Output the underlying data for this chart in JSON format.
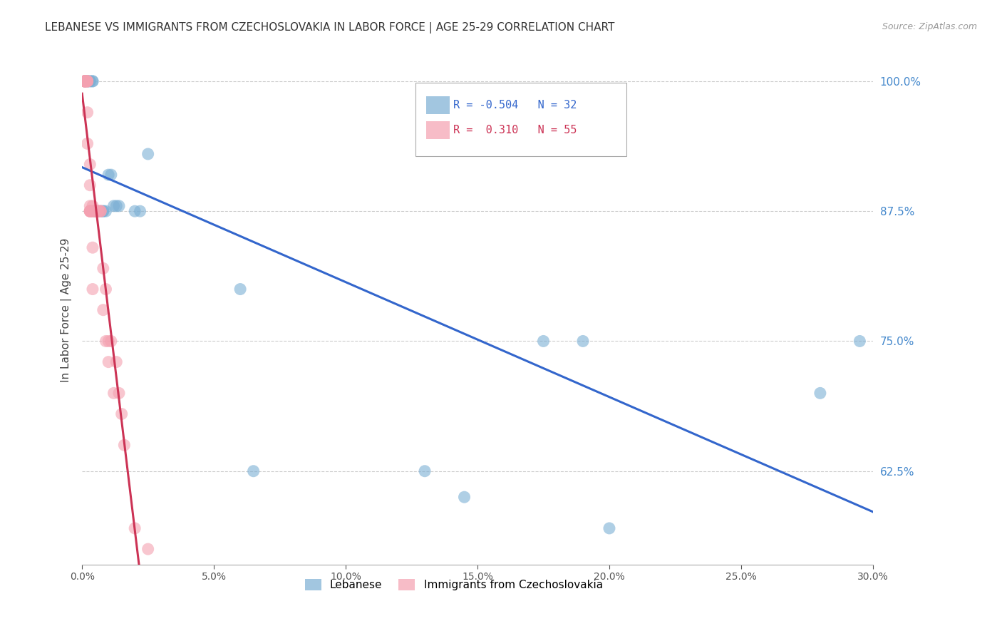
{
  "title": "LEBANESE VS IMMIGRANTS FROM CZECHOSLOVAKIA IN LABOR FORCE | AGE 25-29 CORRELATION CHART",
  "source": "Source: ZipAtlas.com",
  "ylabel": "In Labor Force | Age 25-29",
  "xlim": [
    0.0,
    0.3
  ],
  "ylim": [
    0.535,
    1.025
  ],
  "xticks": [
    0.0,
    0.05,
    0.1,
    0.15,
    0.2,
    0.25,
    0.3
  ],
  "xticklabels": [
    "0.0%",
    "5.0%",
    "10.0%",
    "15.0%",
    "20.0%",
    "25.0%",
    "30.0%"
  ],
  "ytick_positions": [
    0.625,
    0.75,
    0.875,
    1.0
  ],
  "ytick_labels": [
    "62.5%",
    "75.0%",
    "87.5%",
    "100.0%"
  ],
  "grid_color": "#cccccc",
  "background_color": "#ffffff",
  "blue_color": "#7bafd4",
  "pink_color": "#f4a0b0",
  "blue_label": "Lebanese",
  "pink_label": "Immigrants from Czechoslovakia",
  "R_blue": -0.504,
  "N_blue": 32,
  "R_pink": 0.31,
  "N_pink": 55,
  "blue_line_color": "#3366cc",
  "pink_line_color": "#cc3355",
  "blue_x": [
    0.001,
    0.001,
    0.002,
    0.002,
    0.003,
    0.003,
    0.004,
    0.004,
    0.005,
    0.005,
    0.006,
    0.007,
    0.008,
    0.008,
    0.009,
    0.01,
    0.011,
    0.012,
    0.013,
    0.014,
    0.02,
    0.022,
    0.025,
    0.06,
    0.065,
    0.13,
    0.145,
    0.175,
    0.19,
    0.2,
    0.28,
    0.295
  ],
  "blue_y": [
    1.0,
    1.0,
    1.0,
    1.0,
    1.0,
    1.0,
    1.0,
    1.0,
    0.875,
    0.875,
    0.875,
    0.875,
    0.875,
    0.875,
    0.875,
    0.91,
    0.91,
    0.88,
    0.88,
    0.88,
    0.875,
    0.875,
    0.93,
    0.8,
    0.625,
    0.625,
    0.6,
    0.75,
    0.75,
    0.57,
    0.7,
    0.75
  ],
  "pink_x": [
    0.001,
    0.001,
    0.001,
    0.001,
    0.001,
    0.001,
    0.001,
    0.001,
    0.001,
    0.001,
    0.002,
    0.002,
    0.002,
    0.002,
    0.002,
    0.002,
    0.002,
    0.003,
    0.003,
    0.003,
    0.003,
    0.003,
    0.003,
    0.003,
    0.003,
    0.004,
    0.004,
    0.004,
    0.004,
    0.004,
    0.004,
    0.004,
    0.005,
    0.005,
    0.005,
    0.006,
    0.006,
    0.006,
    0.007,
    0.007,
    0.007,
    0.008,
    0.008,
    0.009,
    0.009,
    0.01,
    0.01,
    0.011,
    0.012,
    0.013,
    0.014,
    0.015,
    0.016,
    0.02,
    0.025
  ],
  "pink_y": [
    1.0,
    1.0,
    1.0,
    1.0,
    1.0,
    1.0,
    1.0,
    1.0,
    1.0,
    1.0,
    1.0,
    1.0,
    1.0,
    1.0,
    1.0,
    0.97,
    0.94,
    0.875,
    0.875,
    0.875,
    0.875,
    0.875,
    0.92,
    0.9,
    0.88,
    0.875,
    0.875,
    0.875,
    0.875,
    0.88,
    0.84,
    0.8,
    0.875,
    0.875,
    0.875,
    0.875,
    0.875,
    0.875,
    0.875,
    0.875,
    0.875,
    0.78,
    0.82,
    0.8,
    0.75,
    0.75,
    0.73,
    0.75,
    0.7,
    0.73,
    0.7,
    0.68,
    0.65,
    0.57,
    0.55
  ]
}
